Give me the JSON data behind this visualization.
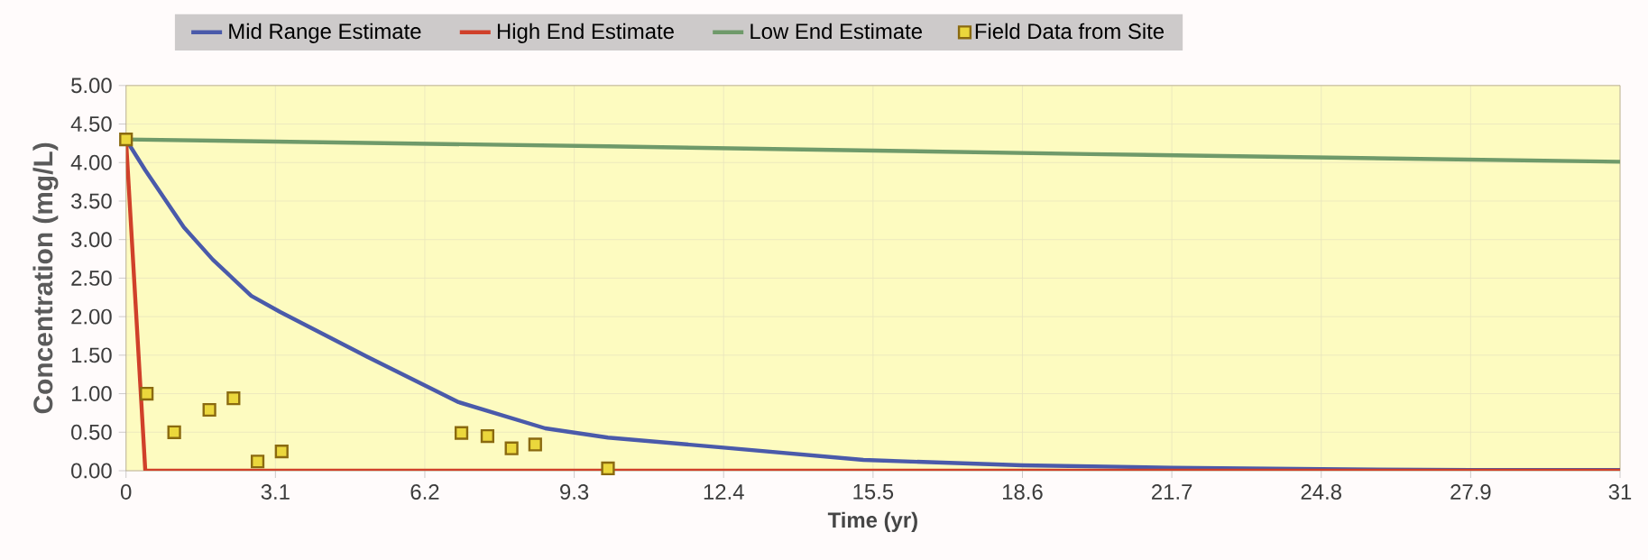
{
  "chart_data": {
    "type": "line",
    "xlabel": "Time (yr)",
    "ylabel": "Concentration (mg/L)",
    "xlim": [
      0,
      31
    ],
    "ylim": [
      0,
      5
    ],
    "xticks": [
      0,
      3.1,
      6.2,
      9.3,
      12.4,
      15.5,
      18.6,
      21.7,
      24.8,
      27.9,
      31
    ],
    "yticks": [
      {
        "value": 0,
        "label": "0.00"
      },
      {
        "value": 0.5,
        "label": "0.50"
      },
      {
        "value": 1,
        "label": "1.00"
      },
      {
        "value": 1.5,
        "label": "1.50"
      },
      {
        "value": 2,
        "label": "2.00"
      },
      {
        "value": 2.5,
        "label": "2.50"
      },
      {
        "value": 3,
        "label": "3.00"
      },
      {
        "value": 3.5,
        "label": "3.50"
      },
      {
        "value": 4,
        "label": "4.00"
      },
      {
        "value": 4.5,
        "label": "4.50"
      },
      {
        "value": 5,
        "label": "5.00"
      }
    ],
    "grid": true,
    "legend": "top",
    "line_style": "solid",
    "series": [
      {
        "name": "Mid Range Estimate",
        "color": "#4a5aaa",
        "x": [
          0,
          0.4,
          1.2,
          1.8,
          2.6,
          3.2,
          5.0,
          6.9,
          8.7,
          10.0,
          12.4,
          15.3,
          18.6,
          21.7,
          24.8,
          27.9,
          31
        ],
        "values": [
          4.3,
          3.9,
          3.16,
          2.74,
          2.27,
          2.06,
          1.48,
          0.89,
          0.55,
          0.43,
          0.3,
          0.14,
          0.07,
          0.04,
          0.02,
          0.01,
          0.01
        ]
      },
      {
        "name": "High End Estimate",
        "color": "#d0402a",
        "x": [
          0,
          0.4,
          31
        ],
        "values": [
          4.3,
          0,
          0
        ]
      },
      {
        "name": "Low End Estimate",
        "color": "#6f9a6a",
        "x": [
          0,
          10,
          20,
          31
        ],
        "values": [
          4.3,
          4.21,
          4.11,
          4.01
        ]
      },
      {
        "name": "Field Data from Site",
        "type": "scatter",
        "marker": "square",
        "color": "#8a6a10",
        "x": [
          0,
          0.43,
          1.0,
          1.73,
          2.23,
          2.73,
          3.23,
          6.96,
          7.5,
          8.0,
          8.49,
          10.0
        ],
        "values": [
          4.3,
          1.0,
          0.5,
          0.79,
          0.94,
          0.12,
          0.25,
          0.49,
          0.45,
          0.29,
          0.34,
          0.03
        ]
      }
    ]
  }
}
